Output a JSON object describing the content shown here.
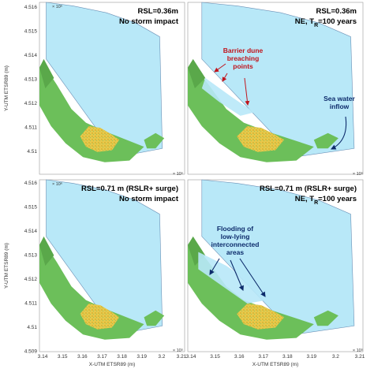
{
  "colors": {
    "sea": "#b8e8f8",
    "sea_edge": "#6a8fb5",
    "land": "#6cbf5a",
    "urban": "#e8c84a",
    "red_arrow": "#c0141c",
    "blue_arrow": "#0d2b6b"
  },
  "axes": {
    "ylabel": "Y-UTM ETSR89 (m)",
    "xlabel": "X-UTM ETSR89 (m)",
    "y_ticks": [
      "4.516",
      "4.515",
      "4.514",
      "4.513",
      "4.512",
      "4.511",
      "4.51"
    ],
    "y_ticks_bottom": [
      "4.516",
      "4.515",
      "4.514",
      "4.513",
      "4.512",
      "4.511",
      "4.51",
      "4.509"
    ],
    "x_ticks": [
      "3.14",
      "3.15",
      "3.16",
      "3.17",
      "3.18",
      "3.19",
      "3.2",
      "3.21"
    ],
    "y_exp": "× 10⁶",
    "x_exp": "× 10⁵"
  },
  "panels": [
    {
      "title1": "RSL=0.36m",
      "title2": "No storm impact"
    },
    {
      "title1": "RSL=0.36m",
      "title2": "NE, T",
      "title2_sub": "R",
      "title2_end": "=100 years"
    },
    {
      "title1": "RSL=0.71 m (RSLR+ surge)",
      "title2": "No storm impact"
    },
    {
      "title1": "RSL=0.71 m (RSLR+ surge)",
      "title2": "NE, T",
      "title2_sub": "R",
      "title2_end": "=100 years"
    }
  ],
  "annotations": {
    "breach": [
      "Barrier dune",
      "breaching",
      "points"
    ],
    "inflow": [
      "Sea water",
      "inflow"
    ],
    "flooding": [
      "Flooding of",
      "low-lying",
      "interconnected",
      "areas"
    ]
  }
}
